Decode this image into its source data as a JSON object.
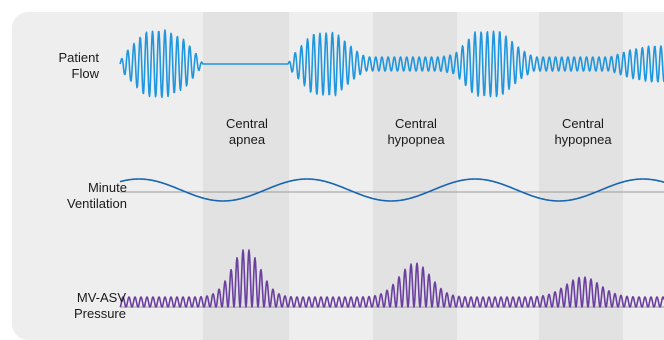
{
  "colors": {
    "card_bg": "#eeeeee",
    "shade": "#e2e2e2",
    "flow": "#1f96dd",
    "ventilation": "#1565b2",
    "pressure": "#6a3fa0",
    "baseline": "#9a9a9a"
  },
  "rows": [
    {
      "label": "Patient\nFlow"
    },
    {
      "label": "Minute\nVentilation"
    },
    {
      "label": "MV-ASV\nPressure"
    }
  ],
  "events": [
    {
      "label": "Central\napnea"
    },
    {
      "label": "Central\nhypopnea"
    },
    {
      "label": "Central\nhypopnea"
    }
  ]
}
